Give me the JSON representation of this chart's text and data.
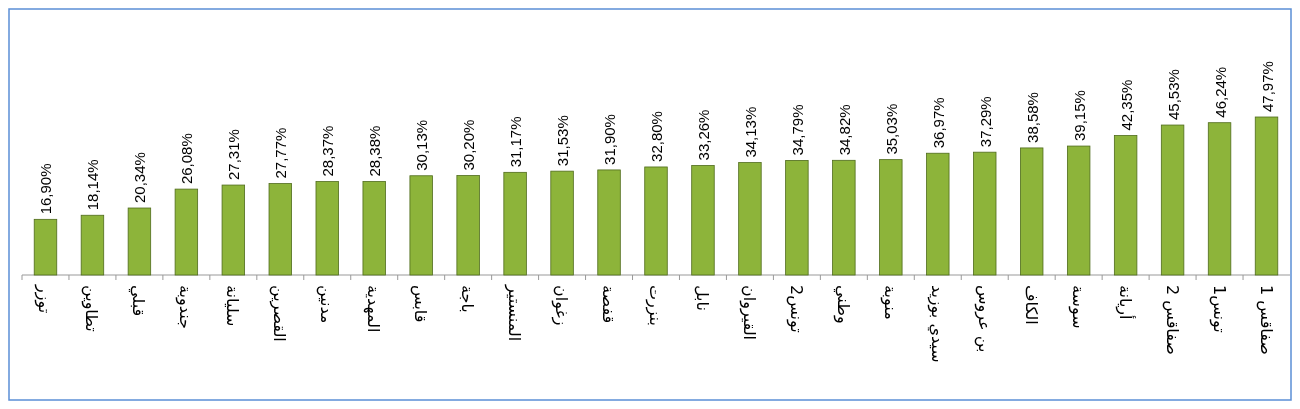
{
  "chart_data": {
    "type": "bar",
    "categories": [
      "توزر",
      "تطاوين",
      "قبلي",
      "جندوبة",
      "سليانة",
      "القصرين",
      "مدنين",
      "المهدية",
      "قابس",
      "باجة",
      "المنستير",
      "زغوان",
      "قفصة",
      "بنزرت",
      "نابل",
      "القيروان",
      "تونس2",
      "وطني",
      "منوبة",
      "سيدي بوزيد",
      "بن عروس",
      "الكاف",
      "سوسة",
      "أريانة",
      "صفاقس 2",
      "تونس1",
      "صفاقس 1"
    ],
    "values": [
      16.9,
      18.14,
      20.34,
      26.08,
      27.31,
      27.77,
      28.37,
      28.38,
      30.13,
      30.2,
      31.17,
      31.53,
      31.9,
      32.8,
      33.26,
      34.13,
      34.79,
      34.82,
      35.03,
      36.97,
      37.29,
      38.58,
      39.15,
      42.35,
      45.53,
      46.24,
      47.97
    ],
    "value_labels": [
      "16,90%",
      "18,14%",
      "20,34%",
      "26,08%",
      "27,31%",
      "27,77%",
      "28,37%",
      "28,38%",
      "30,13%",
      "30,20%",
      "31,17%",
      "31,53%",
      "31,90%",
      "32,80%",
      "33,26%",
      "34,13%",
      "34,79%",
      "34,82%",
      "35,03%",
      "36,97%",
      "37,29%",
      "38,58%",
      "39,15%",
      "42,35%",
      "45,53%",
      "46,24%",
      "47,97%"
    ],
    "color": "#8db43a",
    "tick_labels": "x"
  }
}
